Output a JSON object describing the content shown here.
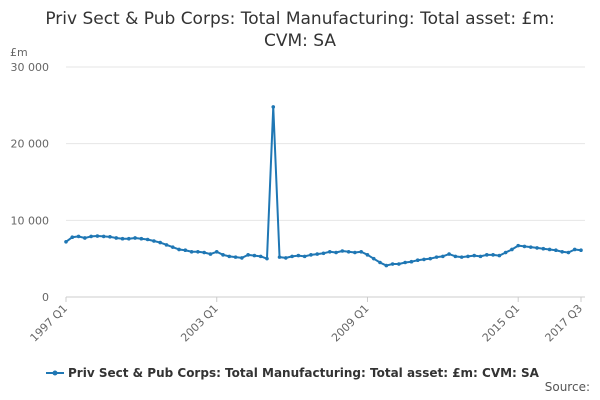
{
  "title_line1": "Priv Sect & Pub Corps: Total Manufacturing: Total asset: £m:",
  "title_line2": "CVM: SA",
  "y_unit": "£m",
  "source": "Source:",
  "colors": {
    "series": "#1f77b4",
    "grid": "#e6e6e6",
    "axis": "#cccccc"
  },
  "chart_data": {
    "type": "line",
    "ylim": [
      0,
      30000
    ],
    "y_ticks": [
      0,
      10000,
      20000,
      30000
    ],
    "y_tick_labels": [
      "0",
      "10 000",
      "20 000",
      "30 000"
    ],
    "x_tick_labels": [
      "1997 Q1",
      "2003 Q1",
      "2009 Q1",
      "2015 Q1",
      "2017 Q3"
    ],
    "x_tick_indices": [
      0,
      24,
      48,
      72,
      82
    ],
    "legend": "Priv Sect & Pub Corps: Total Manufacturing: Total asset: £m: CVM: SA",
    "grid": true,
    "series": [
      {
        "name": "Priv Sect & Pub Corps: Total Manufacturing: Total asset: £m: CVM: SA",
        "x": [
          "1997 Q1",
          "1997 Q2",
          "1997 Q3",
          "1997 Q4",
          "1998 Q1",
          "1998 Q2",
          "1998 Q3",
          "1998 Q4",
          "1999 Q1",
          "1999 Q2",
          "1999 Q3",
          "1999 Q4",
          "2000 Q1",
          "2000 Q2",
          "2000 Q3",
          "2000 Q4",
          "2001 Q1",
          "2001 Q2",
          "2001 Q3",
          "2001 Q4",
          "2002 Q1",
          "2002 Q2",
          "2002 Q3",
          "2002 Q4",
          "2003 Q1",
          "2003 Q2",
          "2003 Q3",
          "2003 Q4",
          "2004 Q1",
          "2004 Q2",
          "2004 Q3",
          "2004 Q4",
          "2005 Q1",
          "2005 Q2",
          "2005 Q3",
          "2005 Q4",
          "2006 Q1",
          "2006 Q2",
          "2006 Q3",
          "2006 Q4",
          "2007 Q1",
          "2007 Q2",
          "2007 Q3",
          "2007 Q4",
          "2008 Q1",
          "2008 Q2",
          "2008 Q3",
          "2008 Q4",
          "2009 Q1",
          "2009 Q2",
          "2009 Q3",
          "2009 Q4",
          "2010 Q1",
          "2010 Q2",
          "2010 Q3",
          "2010 Q4",
          "2011 Q1",
          "2011 Q2",
          "2011 Q3",
          "2011 Q4",
          "2012 Q1",
          "2012 Q2",
          "2012 Q3",
          "2012 Q4",
          "2013 Q1",
          "2013 Q2",
          "2013 Q3",
          "2013 Q4",
          "2014 Q1",
          "2014 Q2",
          "2014 Q3",
          "2014 Q4",
          "2015 Q1",
          "2015 Q2",
          "2015 Q3",
          "2015 Q4",
          "2016 Q1",
          "2016 Q2",
          "2016 Q3",
          "2016 Q4",
          "2017 Q1",
          "2017 Q2",
          "2017 Q3"
        ],
        "values": [
          7200,
          7800,
          7900,
          7700,
          7900,
          7950,
          7900,
          7850,
          7700,
          7600,
          7600,
          7700,
          7600,
          7500,
          7300,
          7100,
          6800,
          6500,
          6200,
          6100,
          5900,
          5900,
          5800,
          5600,
          5900,
          5500,
          5300,
          5200,
          5100,
          5500,
          5400,
          5300,
          5000,
          24800,
          5200,
          5100,
          5300,
          5400,
          5300,
          5500,
          5600,
          5700,
          5900,
          5800,
          6000,
          5900,
          5800,
          5900,
          5500,
          5000,
          4500,
          4100,
          4300,
          4300,
          4500,
          4600,
          4800,
          4900,
          5000,
          5200,
          5300,
          5600,
          5300,
          5200,
          5300,
          5400,
          5300,
          5500,
          5500,
          5400,
          5800,
          6200,
          6700,
          6600,
          6500,
          6400,
          6300,
          6200,
          6100,
          5900,
          5800,
          6200,
          6100
        ]
      }
    ]
  }
}
